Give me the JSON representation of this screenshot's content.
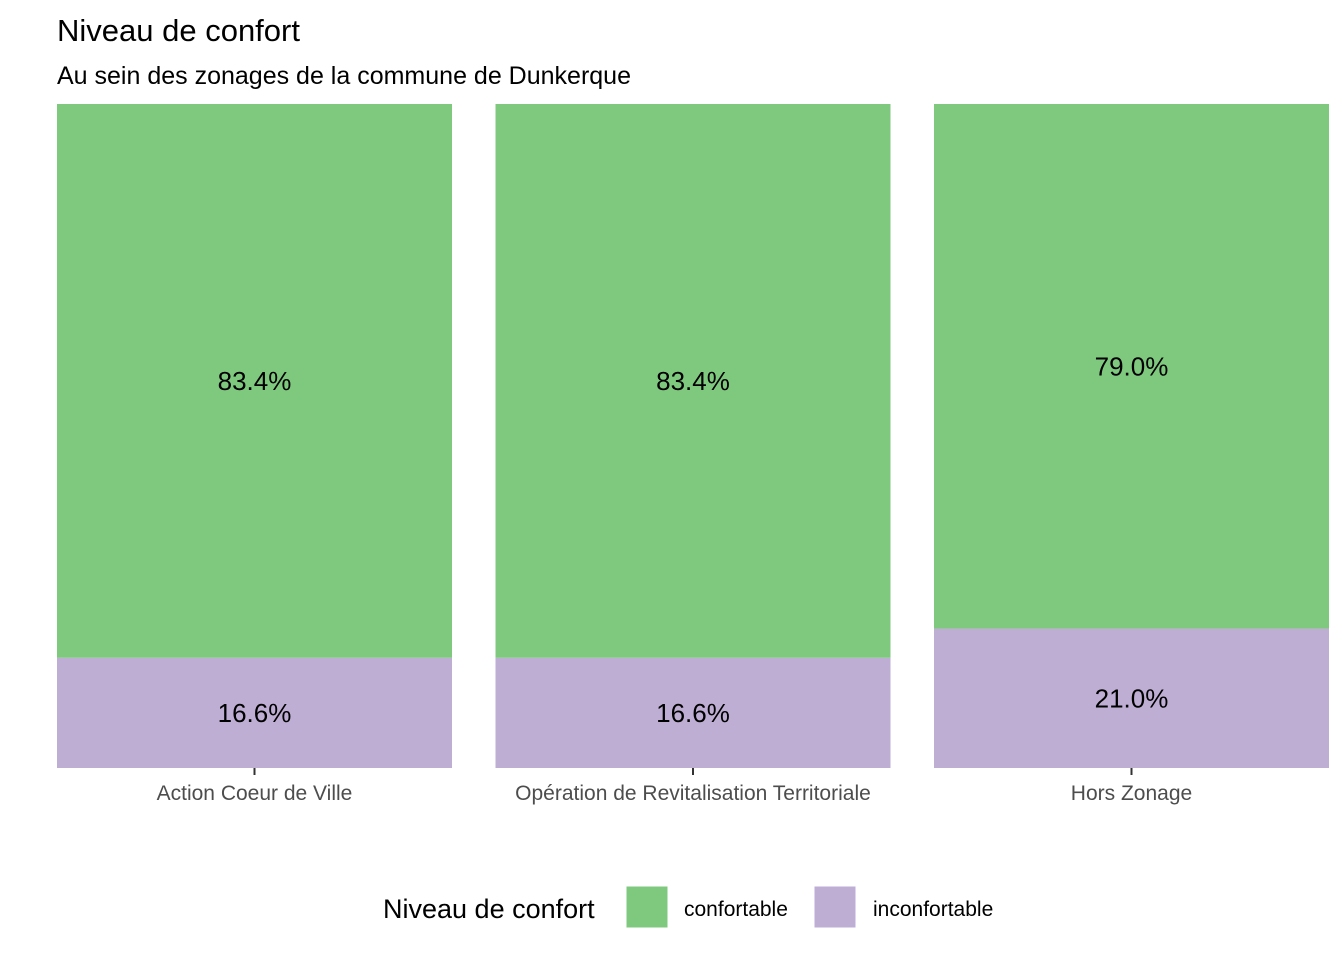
{
  "chart_data": {
    "type": "bar",
    "stacked": true,
    "normalized": true,
    "title": "Niveau de confort",
    "subtitle": "Au sein des zonages de la commune de Dunkerque",
    "categories": [
      "Action Coeur de Ville",
      "Opération de Revitalisation Territoriale",
      "Hors Zonage"
    ],
    "series": [
      {
        "name": "confortable",
        "color": "#7fc97f",
        "values": [
          83.4,
          83.4,
          79.0
        ],
        "labels": [
          "83.4%",
          "83.4%",
          "79.0%"
        ]
      },
      {
        "name": "inconfortable",
        "color": "#beaed4",
        "values": [
          16.6,
          16.6,
          21.0
        ],
        "labels": [
          "16.6%",
          "16.6%",
          "21.0%"
        ]
      }
    ],
    "ylim": [
      0,
      100
    ],
    "grid": false,
    "legend": {
      "title": "Niveau de confort",
      "position": "bottom"
    }
  }
}
